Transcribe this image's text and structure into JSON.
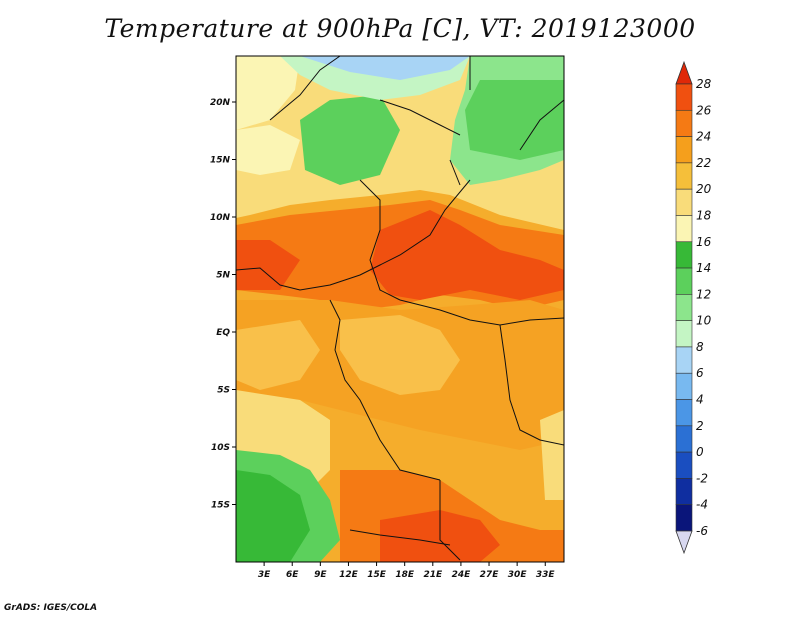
{
  "title": "Temperature at 900hPa [C], VT: 2019123000",
  "credit": "GrADS: IGES/COLA",
  "map": {
    "region": "Central Africa",
    "lon_range": [
      0,
      35
    ],
    "lat_range": [
      -20,
      24
    ],
    "lon_ticks": [
      "3E",
      "6E",
      "9E",
      "12E",
      "15E",
      "18E",
      "21E",
      "24E",
      "27E",
      "30E",
      "33E"
    ],
    "lat_ticks": [
      "20N",
      "15N",
      "10N",
      "5N",
      "EQ",
      "5S",
      "10S",
      "15S"
    ]
  },
  "colorbar": {
    "labels": [
      "28",
      "26",
      "24",
      "22",
      "20",
      "18",
      "16",
      "14",
      "12",
      "10",
      "8",
      "6",
      "4",
      "2",
      "0",
      "-2",
      "-4",
      "-6"
    ],
    "colors": [
      "#e02808",
      "#f05010",
      "#f57a14",
      "#f59f1c",
      "#f5bf3a",
      "#f9dc7a",
      "#fbf5b4",
      "#37b937",
      "#5cd05c",
      "#8ce58c",
      "#c4f5c4",
      "#a8d4f5",
      "#78b9f0",
      "#4b96e6",
      "#2b70d4",
      "#1a4ec0",
      "#0f2ea0",
      "#0a157a",
      "#d8d8f0"
    ]
  },
  "icons": {
    "map": "temperature-field-map"
  }
}
